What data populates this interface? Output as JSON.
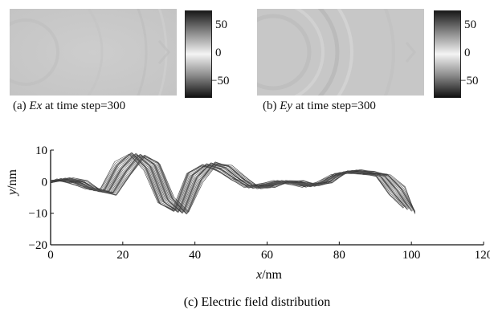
{
  "panel_a": {
    "caption_prefix": "(a) ",
    "caption_var": "Ex",
    "caption_suffix": " at time step=300",
    "colorbar_ticks": [
      "50",
      "0",
      "−50"
    ],
    "colorbar_range": [
      -75,
      75
    ]
  },
  "panel_b": {
    "caption_prefix": "(b) ",
    "caption_var": "Ey",
    "caption_suffix": " at time step=300",
    "colorbar_ticks": [
      "50",
      "0",
      "−50"
    ],
    "colorbar_range": [
      -75,
      75
    ]
  },
  "panel_c": {
    "caption": "(c)  Electric field distribution",
    "ylabel_var": "y",
    "ylabel_unit": "/nm",
    "xlabel_var": "x",
    "xlabel_unit": "/nm"
  },
  "chart_data": [
    {
      "type": "heatmap",
      "title": "(a) Ex at time step=300",
      "colorbar_ticks": [
        50,
        0,
        -50
      ],
      "colormap": "gray (black negative, white near zero, black positive)"
    },
    {
      "type": "heatmap",
      "title": "(b) Ey at time step=300",
      "colorbar_ticks": [
        50,
        0,
        -50
      ],
      "colormap": "gray (black negative, white near zero, black positive)"
    },
    {
      "type": "line",
      "title": "(c)  Electric field distribution",
      "xlabel": "x/nm",
      "ylabel": "y/nm",
      "xlim": [
        0,
        120
      ],
      "ylim": [
        -20,
        10
      ],
      "xticks": [
        0,
        20,
        40,
        60,
        80,
        100,
        120
      ],
      "yticks": [
        10,
        0,
        -10,
        -20
      ],
      "x_extent": [
        0,
        101
      ],
      "series_count": 25,
      "series": [
        {
          "x": [
            0,
            4,
            8,
            12,
            16,
            20,
            24,
            28,
            32,
            36,
            40,
            44,
            48,
            52,
            56,
            60,
            64,
            68,
            72,
            76,
            80,
            84,
            88,
            92,
            96,
            100
          ],
          "values": [
            0,
            0.5,
            -0.5,
            -2,
            -2.5,
            6,
            9,
            4,
            -7,
            -9,
            3,
            5,
            3.5,
            1,
            -1.5,
            -1,
            0,
            -0.5,
            -1.5,
            -0.5,
            2,
            3,
            2.5,
            2,
            -4,
            -8
          ]
        },
        {
          "x": [
            0,
            4,
            8,
            12,
            16,
            20,
            24,
            28,
            32,
            36,
            40,
            44,
            48,
            52,
            56,
            60,
            64,
            68,
            72,
            76,
            80,
            84,
            88,
            92,
            96,
            100
          ],
          "values": [
            0,
            1,
            0,
            -3,
            -4,
            2,
            8,
            6,
            -5,
            -10,
            0,
            6,
            5,
            1,
            -2,
            -1.5,
            0,
            0,
            -1,
            0,
            3,
            3.5,
            3,
            2,
            -2,
            -10
          ]
        }
      ]
    }
  ]
}
